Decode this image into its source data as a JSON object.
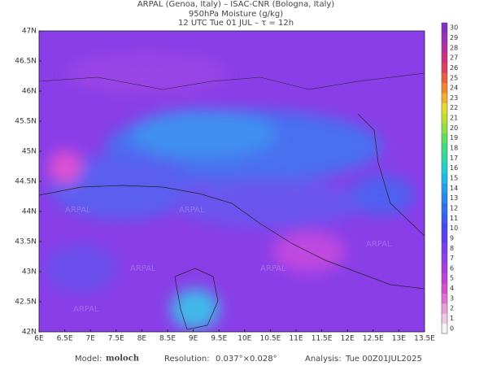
{
  "header": {
    "line1": "ARPAL (Genoa, Italy)  –  ISAC-CNR (Bologna, Italy)",
    "line2": "950hPa Moisture (g/kg)",
    "line3": "12 UTC Tue 01 JUL  –  τ = 12h"
  },
  "map": {
    "lat_labels": [
      "47N",
      "46.5N",
      "46N",
      "45.5N",
      "45N",
      "44.5N",
      "44N",
      "43.5N",
      "43N",
      "42.5N",
      "42N"
    ],
    "lon_labels": [
      "6E",
      "6.5E",
      "7E",
      "7.5E",
      "8E",
      "8.5E",
      "9E",
      "9.5E",
      "10E",
      "10.5E",
      "11E",
      "11.5E",
      "12E",
      "12.5E",
      "13E",
      "13.5E"
    ],
    "watermark": "ARPAL"
  },
  "colorbar": {
    "labels": [
      0,
      1,
      2,
      3,
      4,
      5,
      6,
      7,
      8,
      9,
      10,
      11,
      12,
      13,
      14,
      15,
      16,
      17,
      18,
      19,
      20,
      21,
      22,
      23,
      24,
      25,
      26,
      27,
      28,
      29,
      30
    ]
  },
  "footer": {
    "model_label": "Model:",
    "model": "moloch",
    "resolution_label": "Resolution:",
    "resolution": "0.037°×0.028°",
    "analysis_label": "Analysis:",
    "analysis": "Tue 00Z01JUL2025"
  }
}
